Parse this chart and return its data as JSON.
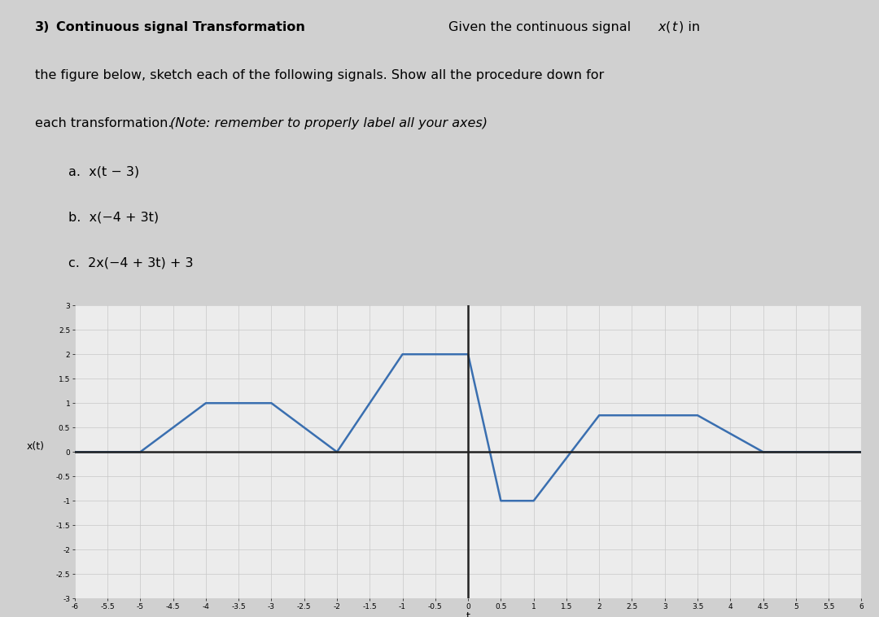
{
  "signal_t": [
    -6,
    -5,
    -4,
    -3,
    -2,
    -1,
    -0.5,
    0,
    0.5,
    1,
    2,
    3,
    3.5,
    4.5,
    5,
    6
  ],
  "signal_x": [
    0,
    0,
    1,
    1,
    0,
    2,
    2,
    2,
    -1,
    -1,
    0.75,
    0.75,
    0.75,
    0,
    0,
    0
  ],
  "xlim": [
    -6,
    6
  ],
  "ylim": [
    -3,
    3
  ],
  "xticks": [
    -6,
    -5.5,
    -5,
    -4.5,
    -4,
    -3.5,
    -3,
    -2.5,
    -2,
    -1.5,
    -1,
    -0.5,
    0,
    0.5,
    1,
    1.5,
    2,
    2.5,
    3,
    3.5,
    4,
    4.5,
    5,
    5.5,
    6
  ],
  "yticks": [
    -3,
    -2.5,
    -2,
    -1.5,
    -1,
    -0.5,
    0,
    0.5,
    1,
    1.5,
    2,
    2.5,
    3
  ],
  "xlabel": "t",
  "ylabel": "x(t)",
  "line_color": "#3a6fb0",
  "line_width": 1.8,
  "axis_color": "#222222",
  "grid_color": "#c8c8c8",
  "bg_color": "#ececec",
  "outer_bg": "#d0d0d0"
}
